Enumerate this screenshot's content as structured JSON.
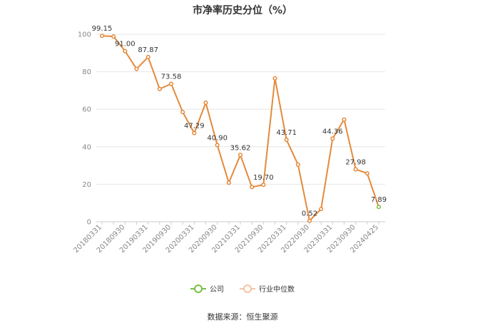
{
  "colors": {
    "company": "#e48a3c",
    "company_legend": "#7ac143",
    "industry_median": "#f6c3a3",
    "grid": "#e6e6e6",
    "axis": "#cccccc"
  },
  "legend": {
    "company": "公司",
    "industry_median": "行业中位数"
  },
  "source": "数据来源：恒生聚源",
  "chart_data": {
    "type": "line",
    "title": "市净率历史分位（%）",
    "xlabel": "",
    "ylabel": "",
    "ylim": [
      0,
      100
    ],
    "yticks": [
      0,
      20,
      40,
      60,
      80,
      100
    ],
    "grid": true,
    "legend_position": "bottom",
    "x_tick_labels": [
      "20180331",
      "20180930",
      "20190331",
      "20190930",
      "20200331",
      "20200930",
      "20210331",
      "20210930",
      "20220331",
      "20220930",
      "20230331",
      "20230930",
      "20240425"
    ],
    "x": [
      "20180331",
      "20180630",
      "20180930",
      "20181231",
      "20190331",
      "20190630",
      "20190930",
      "20191231",
      "20200331",
      "20200630",
      "20200930",
      "20201231",
      "20210331",
      "20210630",
      "20210930",
      "20211231",
      "20220331",
      "20220630",
      "20220930",
      "20221231",
      "20230331",
      "20230630",
      "20230930",
      "20231231",
      "20240425"
    ],
    "series": [
      {
        "name": "公司",
        "values": [
          99.15,
          98.8,
          91.0,
          81.5,
          87.87,
          70.8,
          73.58,
          58.5,
          47.29,
          63.5,
          40.9,
          20.8,
          35.62,
          18.5,
          19.7,
          76.5,
          43.71,
          30.5,
          0.52,
          6.8,
          44.36,
          54.5,
          27.98,
          25.8,
          7.89
        ],
        "labels": [
          "99.15",
          "",
          "91.00",
          "",
          "87.87",
          "",
          "73.58",
          "",
          "47.29",
          "",
          "40.90",
          "",
          "35.62",
          "",
          "19.70",
          "",
          "43.71",
          "",
          "0.52",
          "",
          "44.36",
          "",
          "27.98",
          "",
          "7.89"
        ]
      }
    ]
  }
}
